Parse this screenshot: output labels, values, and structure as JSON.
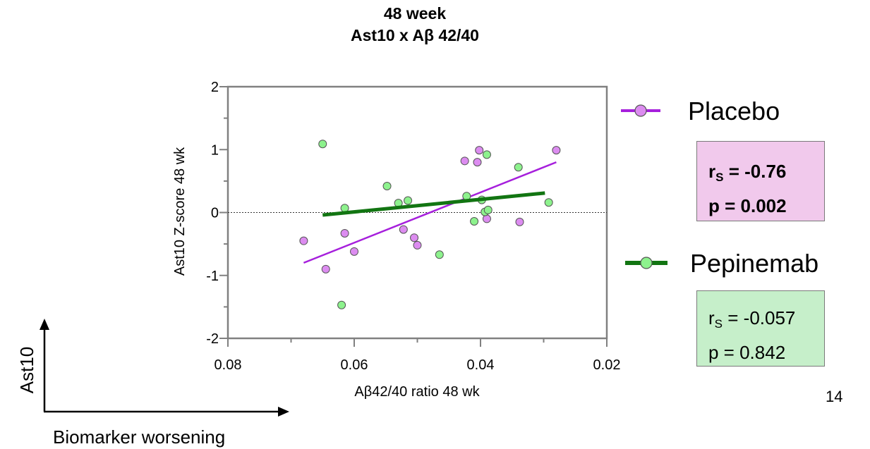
{
  "chart_data": {
    "type": "scatter",
    "title_lines": [
      "48 week",
      "Ast10 x Aβ 42/40"
    ],
    "xlabel": "Aβ42/40 ratio 48 wk",
    "ylabel": "Ast10 Z-score 48 wk",
    "xlim": [
      0.08,
      0.02
    ],
    "ylim": [
      -2,
      2
    ],
    "x_reversed": true,
    "x_ticks": [
      0.08,
      0.06,
      0.04,
      0.02
    ],
    "x_tick_labels": [
      "0.08",
      "0.06",
      "0.04",
      "0.02"
    ],
    "y_ticks": [
      2,
      1,
      0,
      -1,
      -2
    ],
    "y_tick_labels": [
      "2",
      "1",
      "0",
      "-1",
      "-2"
    ],
    "zero_reference_line": true,
    "grid": false,
    "legend_position": "right",
    "series": [
      {
        "name": "Placebo",
        "color": "#a61fdc",
        "marker_fill": "#dc8cf0",
        "points": [
          [
            0.068,
            -0.45
          ],
          [
            0.0645,
            -0.9
          ],
          [
            0.0615,
            -0.33
          ],
          [
            0.06,
            -0.62
          ],
          [
            0.0522,
            -0.27
          ],
          [
            0.0505,
            -0.4
          ],
          [
            0.05,
            -0.52
          ],
          [
            0.0425,
            0.82
          ],
          [
            0.0405,
            0.8
          ],
          [
            0.0402,
            0.99
          ],
          [
            0.039,
            -0.1
          ],
          [
            0.0338,
            -0.15
          ],
          [
            0.028,
            0.99
          ]
        ],
        "fit_line": [
          [
            0.068,
            -0.8
          ],
          [
            0.028,
            0.8
          ]
        ],
        "stats": {
          "r_label": "r",
          "r_sub": "S",
          "r_value": "= -0.76",
          "p_text": "p = 0.002"
        }
      },
      {
        "name": "Pepinemab",
        "color": "#127512",
        "marker_fill": "#8df28d",
        "points": [
          [
            0.065,
            1.09
          ],
          [
            0.062,
            -1.47
          ],
          [
            0.0615,
            0.07
          ],
          [
            0.0548,
            0.42
          ],
          [
            0.053,
            0.15
          ],
          [
            0.0515,
            0.19
          ],
          [
            0.0465,
            -0.67
          ],
          [
            0.0422,
            0.26
          ],
          [
            0.041,
            -0.14
          ],
          [
            0.0398,
            0.2
          ],
          [
            0.0393,
            0.01
          ],
          [
            0.039,
            0.92
          ],
          [
            0.0388,
            0.04
          ],
          [
            0.034,
            0.72
          ],
          [
            0.0292,
            0.16
          ]
        ],
        "fit_line": [
          [
            0.065,
            -0.04
          ],
          [
            0.0298,
            0.31
          ]
        ],
        "stats": {
          "r_label": "r",
          "r_sub": "S",
          "r_value": "= -0.057",
          "p_text": "p = 0.842"
        }
      }
    ]
  },
  "corner": {
    "y_label": "Ast10",
    "x_label": "Biomarker worsening"
  },
  "page_number": "14"
}
